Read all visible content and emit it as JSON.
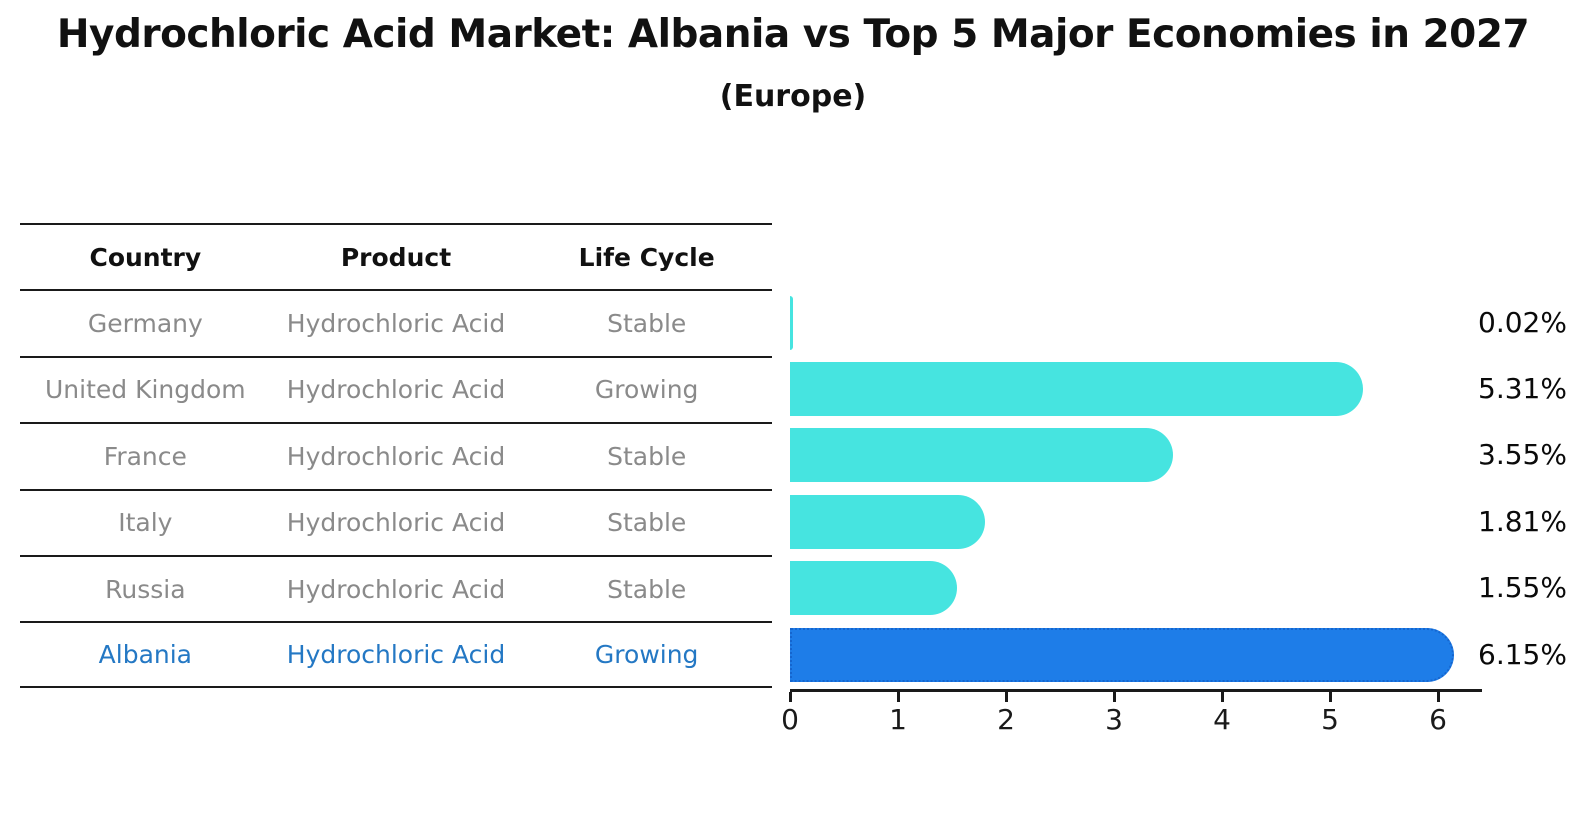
{
  "title": "Hydrochloric Acid Market: Albania vs Top 5 Major Economies in 2027",
  "subtitle": "(Europe)",
  "table": {
    "headers": [
      "Country",
      "Product",
      "Life Cycle"
    ],
    "rows": [
      {
        "country": "Germany",
        "product": "Hydrochloric Acid",
        "life_cycle": "Stable",
        "highlight": false
      },
      {
        "country": "United Kingdom",
        "product": "Hydrochloric Acid",
        "life_cycle": "Growing",
        "highlight": false
      },
      {
        "country": "France",
        "product": "Hydrochloric Acid",
        "life_cycle": "Stable",
        "highlight": false
      },
      {
        "country": "Italy",
        "product": "Hydrochloric Acid",
        "life_cycle": "Stable",
        "highlight": false
      },
      {
        "country": "Russia",
        "product": "Hydrochloric Acid",
        "life_cycle": "Stable",
        "highlight": false
      },
      {
        "country": "Albania",
        "product": "Hydrochloric Acid",
        "life_cycle": "Growing",
        "highlight": true
      }
    ]
  },
  "chart_data": {
    "type": "bar",
    "orientation": "horizontal",
    "title": "Hydrochloric Acid Market: Albania vs Top 5 Major Economies in 2027 (Europe)",
    "categories": [
      "Germany",
      "United Kingdom",
      "France",
      "Italy",
      "Russia",
      "Albania"
    ],
    "values": [
      0.02,
      5.31,
      3.55,
      1.81,
      1.55,
      6.15
    ],
    "value_labels": [
      "0.02%",
      "5.31%",
      "3.55%",
      "1.81%",
      "1.55%",
      "6.15%"
    ],
    "highlight_index": 5,
    "xlim": [
      0,
      6.5
    ],
    "xticks": [
      0,
      1,
      2,
      3,
      4,
      5,
      6
    ],
    "grid": false,
    "legend": false,
    "bar_color": "#46e4e0",
    "highlight_bar_color": "#1e7de8",
    "highlight_border_color": "#1565ce",
    "highlight_text_color": "#2478c4",
    "row_text_color": "#8a8a8a"
  }
}
